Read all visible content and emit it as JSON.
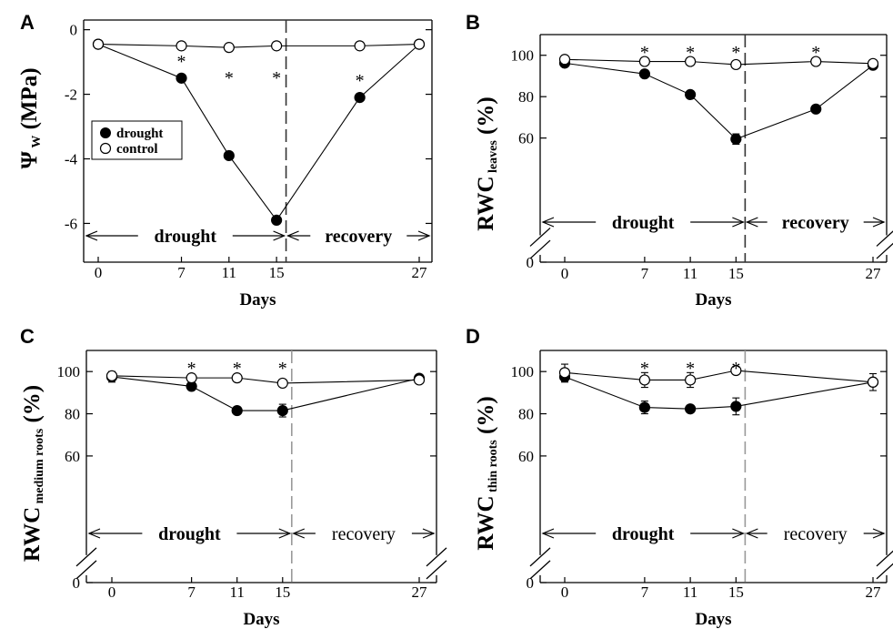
{
  "chart_data": [
    {
      "panel_label": "A",
      "type": "line",
      "ylabel": "Ψ",
      "ylabel_sub": "W",
      "ylabel_suffix": "(MPa)",
      "xlabel": "Days",
      "ylim": [
        -7.2,
        0.3
      ],
      "yticks": [
        "0",
        "-2",
        "-4",
        "-6"
      ],
      "ytick_values": [
        0,
        -2,
        -4,
        -6
      ],
      "y_break": false,
      "xtick_labels": [
        "0",
        "7",
        "11",
        "15",
        "27"
      ],
      "xtick_values": [
        0,
        7,
        11,
        15,
        27
      ],
      "divider_day": 15.8,
      "legend": {
        "placement": "left",
        "entries": [
          "drought",
          "control"
        ]
      },
      "series": [
        {
          "name": "drought",
          "marker": "filled",
          "x": [
            0,
            7,
            11,
            15,
            22,
            27
          ],
          "y": [
            -0.45,
            -1.5,
            -3.9,
            -5.9,
            -2.1,
            -0.45
          ],
          "err": [
            0,
            0,
            0,
            0,
            0,
            0
          ]
        },
        {
          "name": "control",
          "marker": "open",
          "x": [
            0,
            7,
            11,
            15,
            22,
            27
          ],
          "y": [
            -0.45,
            -0.5,
            -0.55,
            -0.5,
            -0.5,
            -0.45
          ],
          "err": [
            0,
            0,
            0,
            0,
            0,
            0
          ]
        }
      ],
      "significance_x": [
        7,
        11,
        15,
        22
      ],
      "significance_label": "*",
      "periods": [
        "drought",
        "recovery"
      ]
    },
    {
      "panel_label": "B",
      "type": "line",
      "ylabel": "RWC",
      "ylabel_sub": "leaves",
      "ylabel_suffix": "(%)",
      "xlabel": "Days",
      "ylim": [
        0,
        110
      ],
      "yticks": [
        "100",
        "80",
        "60",
        "0"
      ],
      "ytick_values": [
        100,
        80,
        60,
        0
      ],
      "y_break": true,
      "xtick_labels": [
        "0",
        "7",
        "11",
        "15",
        "27"
      ],
      "xtick_values": [
        0,
        7,
        11,
        15,
        27
      ],
      "divider_day": 15.8,
      "series": [
        {
          "name": "drought",
          "marker": "filled",
          "x": [
            0,
            7,
            11,
            15,
            22,
            27
          ],
          "y": [
            96.2,
            91,
            81,
            59.5,
            74,
            95.2
          ],
          "err": [
            1.5,
            1,
            0,
            2.5,
            0,
            1.2
          ]
        },
        {
          "name": "control",
          "marker": "open",
          "x": [
            0,
            7,
            11,
            15,
            22,
            27
          ],
          "y": [
            98,
            97,
            97,
            95.5,
            97,
            96
          ],
          "err": [
            0.5,
            0,
            0,
            1.5,
            1.5,
            0.5
          ]
        }
      ],
      "significance_x": [
        7,
        11,
        15,
        22
      ],
      "significance_label": "*",
      "periods": [
        "drought",
        "recovery"
      ]
    },
    {
      "panel_label": "C",
      "type": "line",
      "ylabel": "RWC",
      "ylabel_sub": "medium roots",
      "ylabel_suffix": "(%)",
      "xlabel": "Days",
      "ylim": [
        0,
        110
      ],
      "yticks": [
        "100",
        "80",
        "60",
        "0"
      ],
      "ytick_values": [
        100,
        80,
        60,
        0
      ],
      "y_break": true,
      "xtick_labels": [
        "0",
        "7",
        "11",
        "15",
        "27"
      ],
      "xtick_values": [
        0,
        7,
        11,
        15,
        27
      ],
      "divider_day": 15.8,
      "series": [
        {
          "name": "drought",
          "marker": "filled",
          "x": [
            0,
            7,
            11,
            15,
            27
          ],
          "y": [
            97.5,
            93,
            81.5,
            81.5,
            96.8
          ],
          "err": [
            2.5,
            0,
            0,
            3,
            1
          ]
        },
        {
          "name": "control",
          "marker": "open",
          "x": [
            0,
            7,
            11,
            15,
            27
          ],
          "y": [
            98,
            97,
            97,
            94.5,
            96
          ],
          "err": [
            0.5,
            0,
            0,
            1.5,
            0.5
          ]
        }
      ],
      "significance_x": [
        7,
        11,
        15
      ],
      "significance_label": "*",
      "periods": [
        "drought",
        "recovery"
      ]
    },
    {
      "panel_label": "D",
      "type": "line",
      "ylabel": "RWC",
      "ylabel_sub": "thin roots",
      "ylabel_suffix": "(%)",
      "xlabel": "Days",
      "ylim": [
        0,
        110
      ],
      "yticks": [
        "100",
        "80",
        "60",
        "0"
      ],
      "ytick_values": [
        100,
        80,
        60,
        0
      ],
      "y_break": true,
      "xtick_labels": [
        "0",
        "7",
        "11",
        "15",
        "27"
      ],
      "xtick_values": [
        0,
        7,
        11,
        15,
        27
      ],
      "divider_day": 15.8,
      "series": [
        {
          "name": "drought",
          "marker": "filled",
          "x": [
            0,
            7,
            11,
            15,
            27
          ],
          "y": [
            97.5,
            83,
            82.3,
            83.5,
            95
          ],
          "err": [
            2.5,
            3,
            0,
            4,
            4
          ]
        },
        {
          "name": "control",
          "marker": "open",
          "x": [
            0,
            7,
            11,
            15,
            27
          ],
          "y": [
            99.5,
            96,
            96,
            100.5,
            95
          ],
          "err": [
            4,
            3.5,
            3.5,
            1,
            0.5
          ]
        }
      ],
      "significance_x": [
        7,
        11,
        15
      ],
      "significance_label": "*",
      "periods": [
        "drought",
        "recovery"
      ]
    }
  ]
}
